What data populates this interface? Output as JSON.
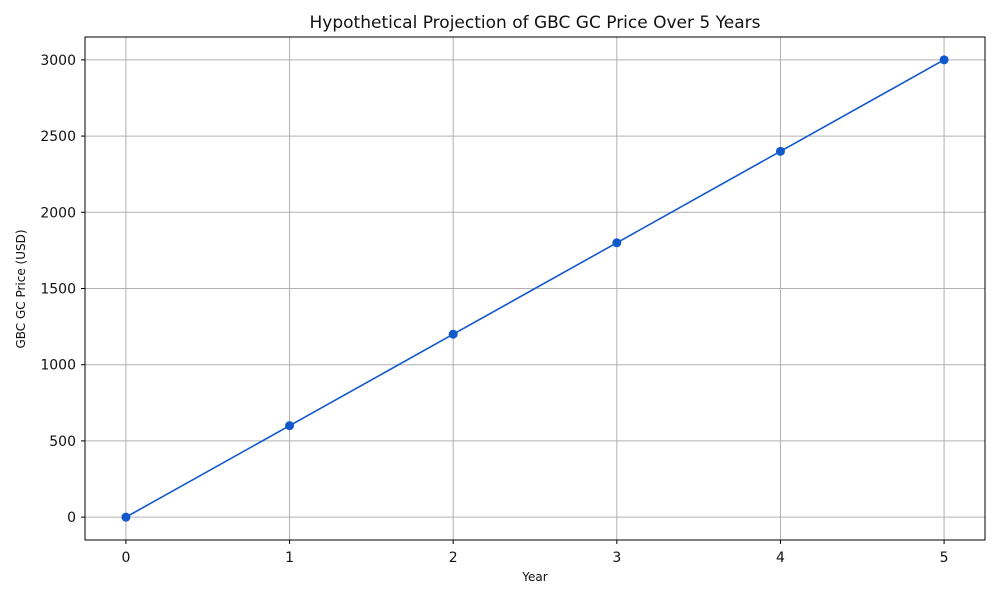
{
  "chart_data": {
    "type": "line",
    "title": "Hypothetical Projection of GBC GC Price Over 5 Years",
    "xlabel": "Year",
    "ylabel": "GBC GC Price (USD)",
    "x": [
      0,
      1,
      2,
      3,
      4,
      5
    ],
    "series": [
      {
        "values": [
          0,
          600,
          1200,
          1800,
          2400,
          3000
        ],
        "color": "#1158cc",
        "marker": "circle"
      }
    ],
    "xlim": [
      -0.25,
      5.25
    ],
    "ylim": [
      -150,
      3150
    ],
    "xticks": [
      "0",
      "1",
      "2",
      "3",
      "4",
      "5"
    ],
    "yticks": [
      "0",
      "500",
      "1000",
      "1500",
      "2000",
      "2500",
      "3000"
    ],
    "grid": true,
    "legend": "none"
  }
}
